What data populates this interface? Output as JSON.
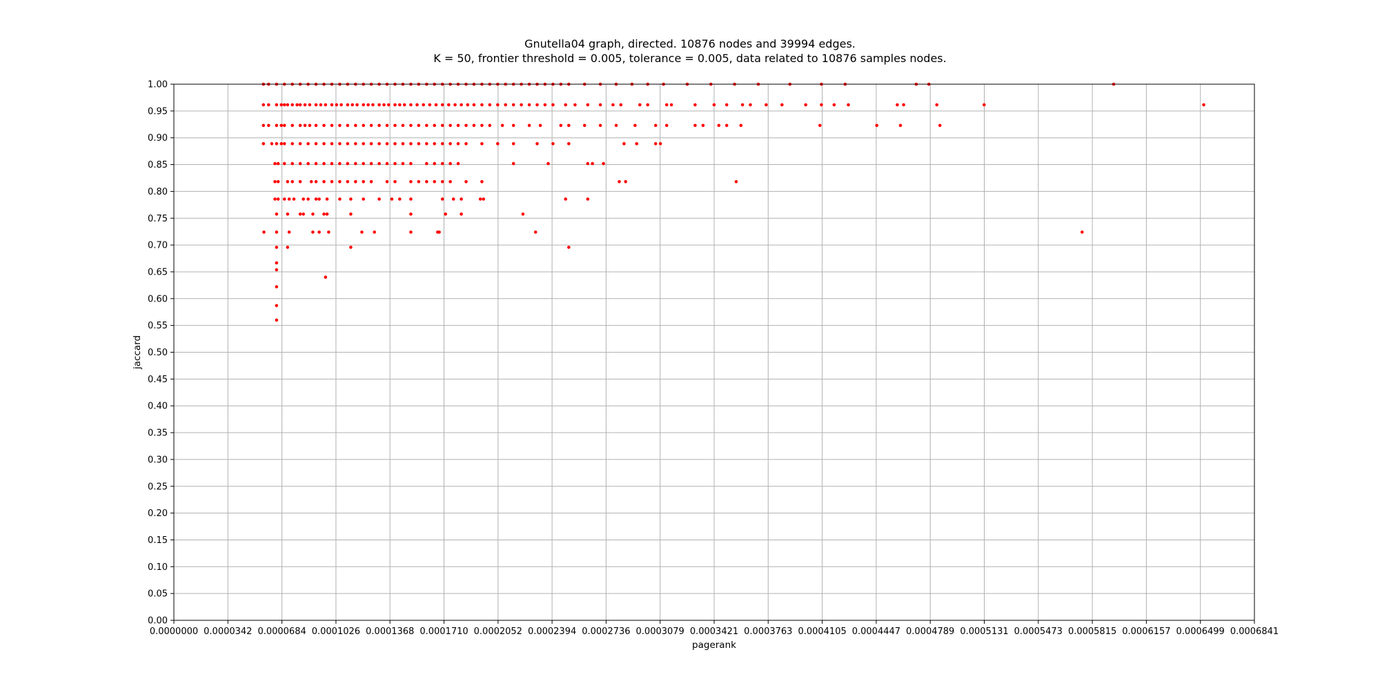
{
  "chart_data": {
    "type": "scatter",
    "title": "Gnutella04 graph, directed. 10876 nodes and 39994 edges.",
    "subtitle": "K = 50, frontier threshold = 0.005, tolerance = 0.005, data related to 10876 samples nodes.",
    "xlabel": "pagerank",
    "ylabel": "jaccard",
    "xlim": [
      0.0,
      0.0006841
    ],
    "ylim": [
      0.0,
      1.0
    ],
    "grid": true,
    "marker_color": "#ff0000",
    "x_ticks": [
      "0.0000000",
      "0.0000342",
      "0.0000684",
      "0.0001026",
      "0.0001368",
      "0.0001710",
      "0.0002052",
      "0.0002394",
      "0.0002736",
      "0.0003079",
      "0.0003421",
      "0.0003763",
      "0.0004105",
      "0.0004447",
      "0.0004789",
      "0.0005131",
      "0.0005473",
      "0.0005815",
      "0.0006157",
      "0.0006499",
      "0.0006841"
    ],
    "y_ticks": [
      "0.00",
      "0.05",
      "0.10",
      "0.15",
      "0.20",
      "0.25",
      "0.30",
      "0.35",
      "0.40",
      "0.45",
      "0.50",
      "0.55",
      "0.60",
      "0.65",
      "0.70",
      "0.75",
      "0.80",
      "0.85",
      "0.90",
      "0.95",
      "1.00"
    ],
    "series": [
      {
        "color": "#ff0000",
        "levels": [
          {
            "y": 1.0,
            "x": [
              5.67e-05,
              6e-05,
              6.5e-05,
              7e-05,
              7.5e-05,
              8e-05,
              8.5e-05,
              9e-05,
              9.5e-05,
              0.0001,
              0.000105,
              0.00011,
              0.000115,
              0.00012,
              0.000125,
              0.00013,
              0.000135,
              0.00014,
              0.000145,
              0.00015,
              0.000155,
              0.00016,
              0.000165,
              0.00017,
              0.000175,
              0.00018,
              0.000185,
              0.00019,
              0.000195,
              0.0002,
              0.000205,
              0.00021,
              0.000215,
              0.00022,
              0.000225,
              0.00023,
              0.000235,
              0.00024,
              0.000245,
              0.00025,
              0.00026,
              0.00027,
              0.00028,
              0.00029,
              0.0003,
              0.00031,
              0.000325,
              0.00034,
              0.000355,
              0.00037,
              0.00039,
              0.00041,
              0.000425,
              0.00047,
              0.000478,
              0.000595
            ]
          },
          {
            "y": 0.9615,
            "x": [
              5.67e-05,
              6e-05,
              6.5e-05,
              6.8e-05,
              7e-05,
              7.2e-05,
              7.5e-05,
              7.8e-05,
              8e-05,
              8.3e-05,
              8.6e-05,
              9e-05,
              9.3e-05,
              9.6e-05,
              0.0001,
              0.000103,
              0.000106,
              0.00011,
              0.000113,
              0.000116,
              0.00012,
              0.000123,
              0.000126,
              0.00013,
              0.000133,
              0.000136,
              0.00014,
              0.000143,
              0.000146,
              0.00015,
              0.000154,
              0.000158,
              0.000162,
              0.000166,
              0.00017,
              0.000174,
              0.000178,
              0.000182,
              0.000186,
              0.00019,
              0.000195,
              0.0002,
              0.000205,
              0.00021,
              0.000215,
              0.00022,
              0.000225,
              0.00023,
              0.000235,
              0.00024,
              0.000248,
              0.000254,
              0.000262,
              0.00027,
              0.000278,
              0.000283,
              0.000295,
              0.0003,
              0.000312,
              0.000315,
              0.00033,
              0.000342,
              0.00035,
              0.00036,
              0.000365,
              0.000375,
              0.000385,
              0.0004,
              0.00041,
              0.000418,
              0.000427,
              0.000458,
              0.000462,
              0.000483,
              0.000513,
              0.000652
            ]
          },
          {
            "y": 0.9231,
            "x": [
              5.67e-05,
              6e-05,
              6.5e-05,
              6.8e-05,
              7e-05,
              7.5e-05,
              8e-05,
              8.3e-05,
              8.6e-05,
              9e-05,
              9.5e-05,
              0.0001,
              0.000105,
              0.00011,
              0.000115,
              0.00012,
              0.000125,
              0.00013,
              0.000135,
              0.00014,
              0.000145,
              0.00015,
              0.000155,
              0.00016,
              0.000165,
              0.00017,
              0.000175,
              0.00018,
              0.000185,
              0.00019,
              0.000195,
              0.0002,
              0.000208,
              0.000215,
              0.000225,
              0.000232,
              0.000245,
              0.00025,
              0.00026,
              0.00027,
              0.00028,
              0.000292,
              0.000305,
              0.000312,
              0.00033,
              0.000335,
              0.000345,
              0.00035,
              0.000359,
              0.000409,
              0.000445,
              0.00046,
              0.000485
            ]
          },
          {
            "y": 0.8889,
            "x": [
              5.67e-05,
              6.2e-05,
              6.5e-05,
              6.8e-05,
              7e-05,
              7.5e-05,
              8e-05,
              8.5e-05,
              9e-05,
              9.5e-05,
              0.0001,
              0.000105,
              0.00011,
              0.000115,
              0.00012,
              0.000125,
              0.00013,
              0.000135,
              0.00014,
              0.000145,
              0.00015,
              0.000155,
              0.00016,
              0.000165,
              0.00017,
              0.000175,
              0.00018,
              0.000185,
              0.000195,
              0.000205,
              0.000215,
              0.00023,
              0.00024,
              0.00025,
              0.000285,
              0.000293,
              0.000305,
              0.000308
            ]
          },
          {
            "y": 0.8519,
            "x": [
              6.4e-05,
              6.6e-05,
              7e-05,
              7.5e-05,
              8e-05,
              8.5e-05,
              9e-05,
              9.5e-05,
              0.0001,
              0.000105,
              0.00011,
              0.000115,
              0.00012,
              0.000125,
              0.00013,
              0.000135,
              0.00014,
              0.000145,
              0.00015,
              0.00016,
              0.000165,
              0.00017,
              0.000175,
              0.00018,
              0.000215,
              0.000237,
              0.000262,
              0.000265,
              0.000272
            ]
          },
          {
            "y": 0.8182,
            "x": [
              6.4e-05,
              6.6e-05,
              7.2e-05,
              7.5e-05,
              8e-05,
              8.7e-05,
              9e-05,
              9.5e-05,
              0.0001,
              0.000105,
              0.00011,
              0.000115,
              0.00012,
              0.000125,
              0.000135,
              0.00014,
              0.00015,
              0.000155,
              0.00016,
              0.000165,
              0.00017,
              0.000175,
              0.000185,
              0.000195,
              0.000282,
              0.000286,
              0.000356
            ]
          },
          {
            "y": 0.7857,
            "x": [
              6.4e-05,
              6.6e-05,
              7e-05,
              7.3e-05,
              7.6e-05,
              8.2e-05,
              8.5e-05,
              9e-05,
              9.2e-05,
              9.7e-05,
              0.000105,
              0.000112,
              0.00012,
              0.00013,
              0.000138,
              0.000143,
              0.00015,
              0.00017,
              0.000177,
              0.000182,
              0.000194,
              0.000196,
              0.000248,
              0.000262
            ]
          },
          {
            "y": 0.7576,
            "x": [
              6.5e-05,
              7.2e-05,
              8e-05,
              8.2e-05,
              8.8e-05,
              9.5e-05,
              9.7e-05,
              0.000112,
              0.00015,
              0.000172,
              0.000182,
              0.000221
            ]
          },
          {
            "y": 0.7241,
            "x": [
              5.7e-05,
              6.5e-05,
              7.3e-05,
              8.8e-05,
              9.2e-05,
              9.8e-05,
              0.000119,
              0.000127,
              0.00015,
              0.000167,
              0.000168,
              0.000229,
              0.000575
            ]
          },
          {
            "y": 0.6957,
            "x": [
              6.5e-05,
              7.2e-05,
              0.000112,
              0.00025
            ]
          },
          {
            "y": 0.6667,
            "x": [
              6.5e-05
            ]
          },
          {
            "y": 0.6538,
            "x": [
              6.5e-05
            ]
          },
          {
            "y": 0.64,
            "x": [
              9.6e-05
            ]
          },
          {
            "y": 0.6222,
            "x": [
              6.5e-05
            ]
          },
          {
            "y": 0.587,
            "x": [
              6.5e-05
            ]
          },
          {
            "y": 0.56,
            "x": [
              6.5e-05
            ]
          }
        ]
      }
    ]
  }
}
